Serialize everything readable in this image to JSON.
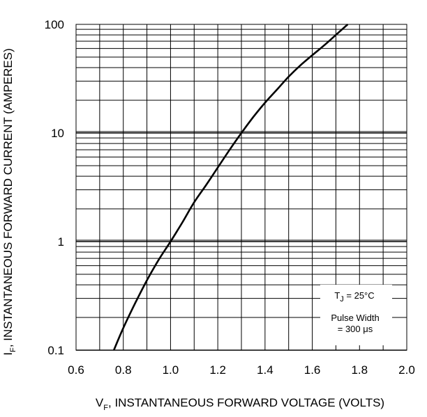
{
  "chart_data": {
    "type": "line",
    "title": "",
    "xlabel": {
      "main": "V",
      "sub": "F",
      "rest": ", INSTANTANEOUS FORWARD VOLTAGE (VOLTS)"
    },
    "ylabel": {
      "main": "I",
      "sub": "F",
      "rest": ", INSTANTANEOUS FORWARD CURRENT (AMPERES)"
    },
    "xlim": [
      0.6,
      2.0
    ],
    "ylim": [
      0.1,
      100
    ],
    "yscale": "log",
    "grid": true,
    "x_ticks": [
      "0.6",
      "0.8",
      "1.0",
      "1.2",
      "1.4",
      "1.6",
      "1.8",
      "2.0"
    ],
    "y_ticks": [
      "0.1",
      "1",
      "10",
      "100"
    ],
    "series": [
      {
        "name": "",
        "x": [
          0.76,
          0.8,
          0.85,
          0.9,
          0.95,
          1.0,
          1.05,
          1.1,
          1.15,
          1.2,
          1.25,
          1.3,
          1.35,
          1.4,
          1.45,
          1.5,
          1.55,
          1.6,
          1.65,
          1.7,
          1.75
        ],
        "y": [
          0.1,
          0.16,
          0.27,
          0.44,
          0.68,
          1.0,
          1.5,
          2.3,
          3.3,
          4.8,
          7.0,
          10.0,
          14.0,
          19.0,
          25.0,
          33.0,
          42.0,
          52.0,
          64.0,
          80.0,
          100.0
        ]
      }
    ],
    "annotations": {
      "tj": {
        "main": "T",
        "sub": "J",
        "rest": " = 25°C"
      },
      "pulse_line1": "Pulse Width",
      "pulse_line2": "= 300 μs"
    }
  }
}
